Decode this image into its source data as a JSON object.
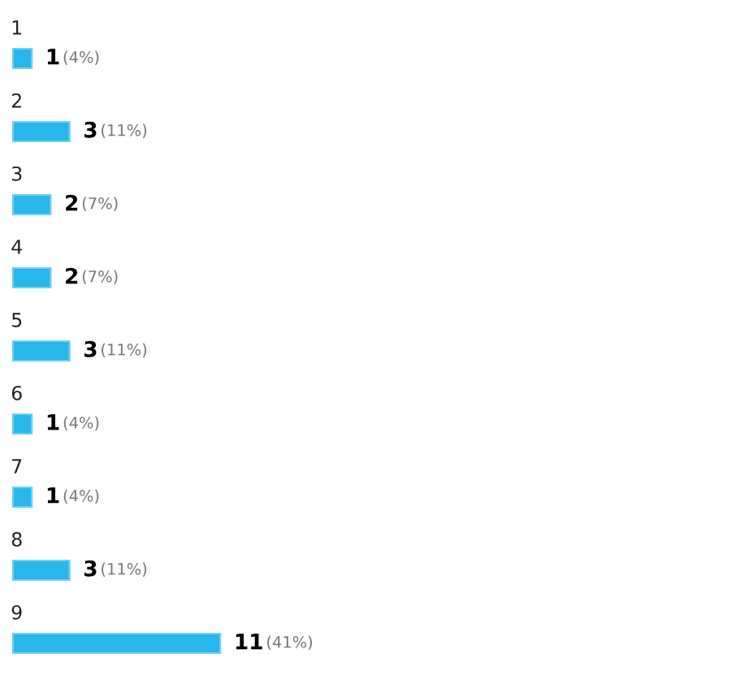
{
  "chart_data": {
    "type": "bar",
    "orientation": "horizontal",
    "categories": [
      "1",
      "2",
      "3",
      "4",
      "5",
      "6",
      "7",
      "8",
      "9"
    ],
    "values": [
      1,
      3,
      2,
      2,
      3,
      1,
      1,
      3,
      11
    ],
    "value_labels": [
      "1 (4%)",
      "3 (11%)",
      "2 (7%)",
      "2 (7%)",
      "3 (11%)",
      "1 (4%)",
      "1 (4%)",
      "3 (11%)",
      "11 (41%)"
    ],
    "color": "#29b6ea",
    "tick_labels": false
  }
}
